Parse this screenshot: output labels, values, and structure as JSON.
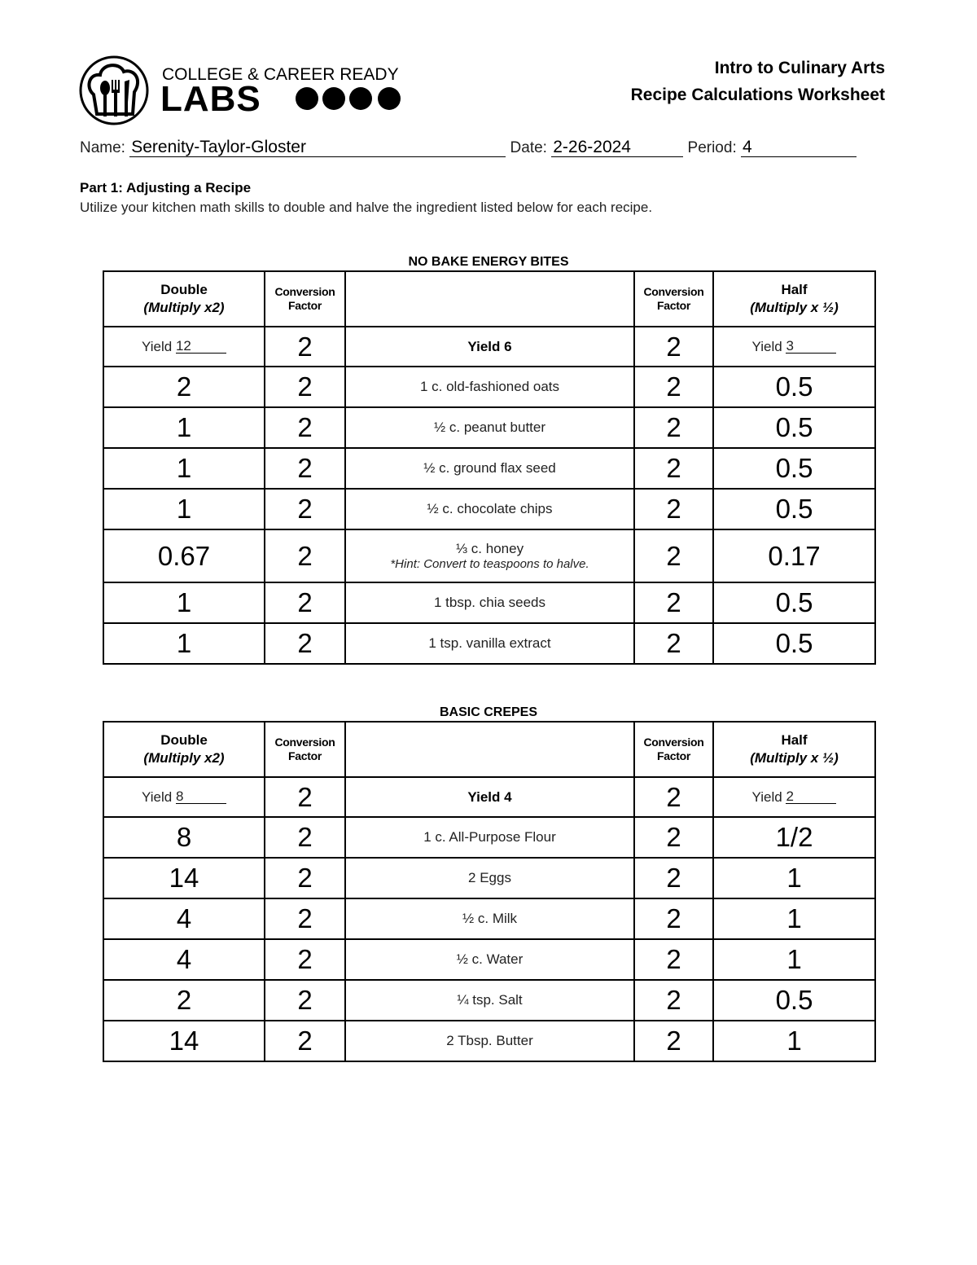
{
  "logo": {
    "line1": "COLLEGE & CAREER READY",
    "line2": "LABS"
  },
  "header": {
    "course": "Intro to Culinary Arts",
    "worksheet": "Recipe Calculations Worksheet"
  },
  "student": {
    "name_label": "Name:",
    "name": "Serenity-Taylor-Gloster",
    "date_label": "Date:",
    "date": "2-26-2024",
    "period_label": "Period:",
    "period": "4"
  },
  "part1": {
    "title": "Part 1:  Adjusting a Recipe",
    "instructions": "Utilize your kitchen math skills to double and halve the ingredient listed below for each recipe."
  },
  "columns": {
    "double": "Double",
    "double_sub": "(Multiply x2)",
    "conv1": "Conversion",
    "conv2": "Factor",
    "half": "Half",
    "half_sub": "(Multiply x ½)",
    "yield_label": "Yield"
  },
  "tables": [
    {
      "title": "NO BAKE ENERGY BITES",
      "yield_double": "12",
      "yield": "Yield 6",
      "yield_half": "3",
      "yield_conv_left": "2",
      "yield_conv_right": "2",
      "rows": [
        {
          "double": "2",
          "conv_left": "2",
          "ingredient": "1 c. old-fashioned oats",
          "conv_right": "2",
          "half": "0.5"
        },
        {
          "double": "1",
          "conv_left": "2",
          "ingredient": "½ c. peanut butter",
          "conv_right": "2",
          "half": "0.5"
        },
        {
          "double": "1",
          "conv_left": "2",
          "ingredient": "½ c. ground flax seed",
          "conv_right": "2",
          "half": "0.5"
        },
        {
          "double": "1",
          "conv_left": "2",
          "ingredient": "½ c. chocolate chips",
          "conv_right": "2",
          "half": "0.5"
        },
        {
          "double": "0.67",
          "conv_left": "2",
          "ingredient": "⅓ c. honey",
          "hint": "*Hint: Convert to teaspoons to halve.",
          "conv_right": "2",
          "half": "0.17"
        },
        {
          "double": "1",
          "conv_left": "2",
          "ingredient": "1 tbsp. chia seeds",
          "conv_right": "2",
          "half": "0.5"
        },
        {
          "double": "1",
          "conv_left": "2",
          "ingredient": "1 tsp. vanilla extract",
          "conv_right": "2",
          "half": "0.5"
        }
      ]
    },
    {
      "title": "BASIC CREPES",
      "yield_double": "8",
      "yield": "Yield 4",
      "yield_half": "2",
      "yield_conv_left": "2",
      "yield_conv_right": "2",
      "rows": [
        {
          "double": "8",
          "conv_left": "2",
          "ingredient": "1 c. All-Purpose Flour",
          "conv_right": "2",
          "half": "1/2"
        },
        {
          "double": "14",
          "conv_left": "2",
          "ingredient": "2 Eggs",
          "conv_right": "2",
          "half": "1"
        },
        {
          "double": "4",
          "conv_left": "2",
          "ingredient": "½ c. Milk",
          "conv_right": "2",
          "half": "1"
        },
        {
          "double": "4",
          "conv_left": "2",
          "ingredient": "½ c. Water",
          "conv_right": "2",
          "half": "1"
        },
        {
          "double": "2",
          "conv_left": "2",
          "ingredient": "¼ tsp. Salt",
          "conv_right": "2",
          "half": "0.5"
        },
        {
          "double": "14",
          "conv_left": "2",
          "ingredient": "2 Tbsp. Butter",
          "conv_right": "2",
          "half": "1"
        }
      ]
    }
  ]
}
